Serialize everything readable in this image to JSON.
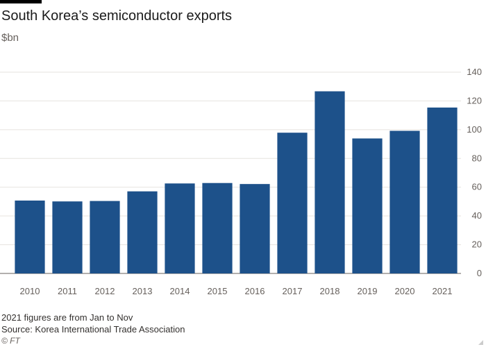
{
  "header": {
    "title": "South Korea’s semiconductor exports",
    "unit": "$bn"
  },
  "footer": {
    "note": "2021 figures are from Jan to Nov",
    "source": "Source: Korea International Trade Association",
    "copyright": "© FT"
  },
  "colors": {
    "bar": "#1d518a",
    "grid": "#e6e3df",
    "axis": "#66605c"
  },
  "chart_data": {
    "type": "bar",
    "title": "South Korea’s semiconductor exports",
    "ylabel": "$bn",
    "xlabel": "",
    "categories": [
      "2010",
      "2011",
      "2012",
      "2013",
      "2014",
      "2015",
      "2016",
      "2017",
      "2018",
      "2019",
      "2020",
      "2021"
    ],
    "values": [
      50.7,
      50.1,
      50.4,
      57.1,
      62.6,
      62.9,
      62.2,
      97.9,
      126.7,
      93.9,
      99.2,
      115.4
    ],
    "ylim": [
      0,
      140
    ],
    "yticks": [
      0,
      20,
      40,
      60,
      80,
      100,
      120,
      140
    ],
    "y_axis_side": "right",
    "grid": true
  }
}
